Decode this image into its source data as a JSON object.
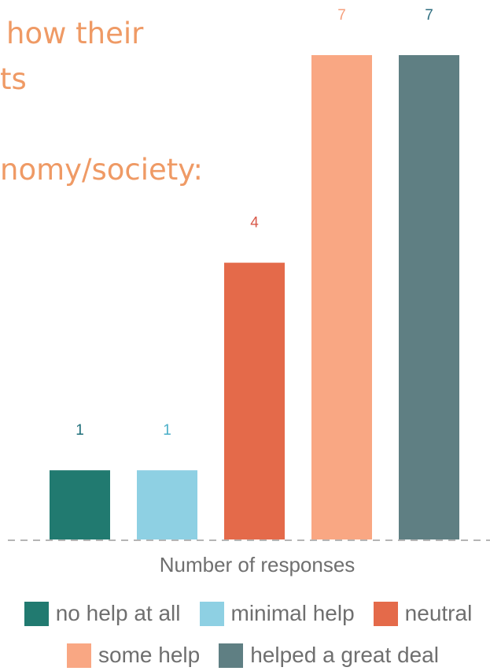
{
  "title_lines": [
    "how their",
    "ts",
    "nomy/society:"
  ],
  "colors": {
    "title": "#EF9A65",
    "baseline": "#b5b5b5"
  },
  "chart_data": {
    "type": "bar",
    "categories": [
      "no help at all",
      "minimal help",
      "neutral",
      "some help",
      "helped a great deal"
    ],
    "values": [
      1,
      1,
      4,
      7,
      7
    ],
    "value_labels": [
      "1",
      "1",
      "4",
      "7",
      "7"
    ],
    "colors": [
      "#217A70",
      "#8ED0E3",
      "#E46A4A",
      "#F9A783",
      "#5F7F83"
    ],
    "label_colors": [
      "#1F6F7A",
      "#4AAFC8",
      "#D9594A",
      "#F59F7C",
      "#2F6E80"
    ],
    "title": "",
    "xlabel": "Number of responses",
    "ylabel": "",
    "ylim": [
      0,
      7
    ],
    "grid": false,
    "legend": {
      "placement": "bottom",
      "rows": [
        [
          "no help at all",
          "minimal help",
          "neutral"
        ],
        [
          "some help",
          "helped a great deal"
        ]
      ]
    }
  }
}
